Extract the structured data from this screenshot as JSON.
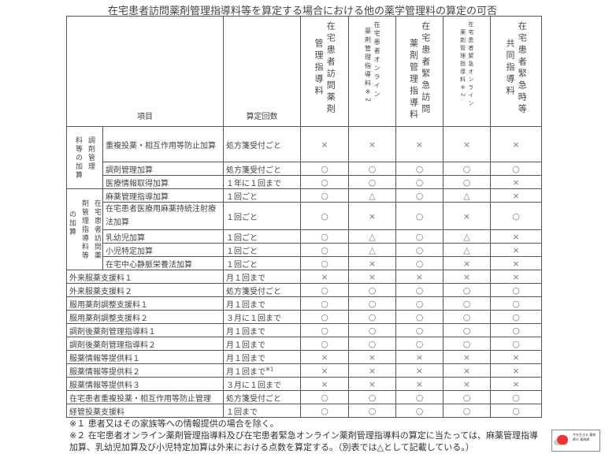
{
  "title": "在宅患者訪問薬剤管理指導料等を算定する場合における他の薬学管理料の算定の可否",
  "header": {
    "item": "項目",
    "count": "算定回数",
    "columns": [
      {
        "a": "在宅患者訪問薬剤",
        "b": "管理指導料"
      },
      {
        "a": "在宅患者オンライン",
        "b": "薬剤管理指導料※2"
      },
      {
        "a": "在宅患者緊急訪問",
        "b": "薬剤管理指導料"
      },
      {
        "a": "在宅患者緊急オンライン",
        "b": "薬剤管理指導料※2"
      },
      {
        "a": "在宅患者緊急時等",
        "b": "共同指導料"
      }
    ]
  },
  "groups": [
    {
      "cols": [
        "調剤管理",
        "料等の加算"
      ]
    },
    {
      "cols": [
        "在宅患者訪問薬",
        "剤管理指導料等",
        "の加算"
      ]
    }
  ],
  "rows": [
    {
      "item": "重複投薬・相互作用等防止加算",
      "count": "処方箋受付ごと",
      "marks": [
        "×",
        "×",
        "×",
        "×",
        "×"
      ]
    },
    {
      "item": "調剤管理加算",
      "count": "処方箋受付ごと",
      "marks": [
        "○",
        "○",
        "○",
        "○",
        "○"
      ]
    },
    {
      "item": "医療情報取得加算",
      "count": "１年に１回まで",
      "marks": [
        "○",
        "○",
        "○",
        "○",
        "×"
      ]
    },
    {
      "item": "麻薬管理指導加算",
      "count": "１回ごと",
      "marks": [
        "○",
        "△",
        "○",
        "△",
        "×"
      ]
    },
    {
      "item": "在宅患者医療用麻薬持続注射療法加算",
      "count": "１回ごと",
      "marks": [
        "○",
        "×",
        "○",
        "×",
        "○"
      ]
    },
    {
      "item": "乳幼児加算",
      "count": "１回ごと",
      "marks": [
        "○",
        "△",
        "○",
        "△",
        "×"
      ]
    },
    {
      "item": "小児特定加算",
      "count": "１回ごと",
      "marks": [
        "○",
        "△",
        "○",
        "△",
        "×"
      ]
    },
    {
      "item": "在宅中心静脈栄養法加算",
      "count": "１回ごと",
      "marks": [
        "○",
        "×",
        "○",
        "×",
        "×"
      ]
    },
    {
      "item": "外来服薬支援料１",
      "count": "月１回まで",
      "marks": [
        "×",
        "×",
        "×",
        "×",
        "×"
      ]
    },
    {
      "item": "外来服薬支援料２",
      "count": "処方箋受付ごと",
      "marks": [
        "○",
        "○",
        "○",
        "○",
        "○"
      ]
    },
    {
      "item": "服用薬剤調整支援料１",
      "count": "月１回まで",
      "marks": [
        "○",
        "○",
        "○",
        "○",
        "○"
      ]
    },
    {
      "item": "服用薬剤調整支援料２",
      "count": "３月に１回まで",
      "marks": [
        "○",
        "○",
        "○",
        "○",
        "○"
      ]
    },
    {
      "item": "調剤後薬剤管理指導料１",
      "count": "月１回まで",
      "marks": [
        "○",
        "○",
        "○",
        "○",
        "○"
      ]
    },
    {
      "item": "調剤後薬剤管理指導料２",
      "count": "月１回まで",
      "marks": [
        "○",
        "○",
        "○",
        "○",
        "○"
      ]
    },
    {
      "item": "服薬情報等提供料１",
      "count": "月１回まで",
      "marks": [
        "×",
        "×",
        "×",
        "×",
        "×"
      ]
    },
    {
      "item": "服薬情報等提供料２",
      "count": "月１回まで",
      "count_note": "※1",
      "marks": [
        "×",
        "×",
        "×",
        "×",
        "×"
      ]
    },
    {
      "item": "服薬情報等提供料３",
      "count": "３月に１回まで",
      "marks": [
        "×",
        "×",
        "×",
        "×",
        "×"
      ]
    },
    {
      "item": "在宅患者重複投薬・相互作用等防止管理",
      "count": "処方箋受付ごと",
      "marks": [
        "○",
        "○",
        "○",
        "○",
        "○"
      ]
    },
    {
      "item": "経管投薬支援料",
      "count": "１回まで",
      "marks": [
        "○",
        "○",
        "○",
        "○",
        "○"
      ]
    }
  ],
  "notes": [
    "※１ 患者又はその家族等への情報提供の場合を除く。",
    "※２ 在宅患者オンライン薬剤管理指導料及び在宅患者緊急オンライン薬剤管理指導料の算定に当たっては、麻薬管理指導加算、乳幼児加算及び小児特定加算は外来における点数を算定する。（別表では△として記載している。）"
  ],
  "logo_text": "今を生きる 薬剤師の 薬剤師",
  "colors": {
    "border": "#555555",
    "mark": "#777777",
    "logo_accent": "#e33333"
  }
}
